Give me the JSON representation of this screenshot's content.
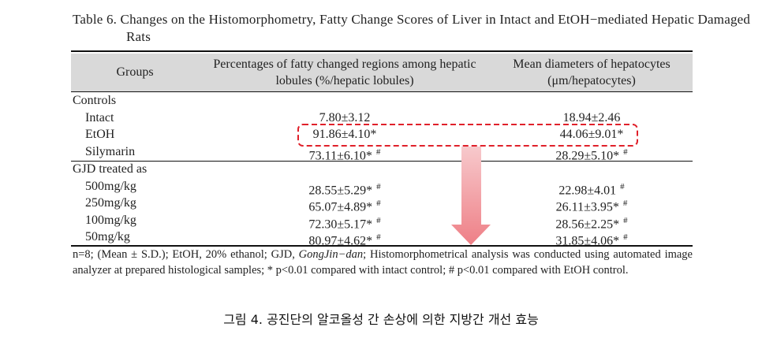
{
  "title": "Table 6. Changes on the Histomorphometry, Fatty Change Scores of Liver in Intact and EtOH−mediated Hepatic Damaged Rats",
  "table": {
    "header": {
      "group": "Groups",
      "fatty": [
        "Percentages of fatty changed regions among hepatic",
        "lobules (%/hepatic lobules)"
      ],
      "diameter": [
        "Mean diameters of hepatocytes",
        "(μm/hepatocytes)"
      ]
    },
    "sections": [
      {
        "label": "Controls",
        "rows": [
          {
            "group": "Intact",
            "fatty": {
              "text": "7.80±3.12"
            },
            "diameter": {
              "text": "18.94±2.46"
            }
          },
          {
            "group": "EtOH",
            "fatty": {
              "text": "91.86±4.10*"
            },
            "diameter": {
              "text": "44.06±9.01*"
            }
          },
          {
            "group": "Silymarin",
            "fatty": {
              "text": "73.11±6.10*",
              "mark": "#"
            },
            "diameter": {
              "text": "28.29±5.10*",
              "mark": "#"
            }
          }
        ]
      },
      {
        "label": "GJD treated as",
        "rows": [
          {
            "group": "500mg/kg",
            "fatty": {
              "text": "28.55±5.29*",
              "mark": "#"
            },
            "diameter": {
              "text": "22.98±4.01",
              "mark": "#"
            }
          },
          {
            "group": "250mg/kg",
            "fatty": {
              "text": "65.07±4.89*",
              "mark": "#"
            },
            "diameter": {
              "text": "26.11±3.95*",
              "mark": "#"
            }
          },
          {
            "group": "100mg/kg",
            "fatty": {
              "text": "72.30±5.17*",
              "mark": "#"
            },
            "diameter": {
              "text": "28.56±2.25*",
              "mark": "#"
            }
          },
          {
            "group": "50mg/kg",
            "fatty": {
              "text": "80.97±4.62*",
              "mark": "#"
            },
            "diameter": {
              "text": "31.85±4.06*",
              "mark": "#"
            }
          }
        ]
      }
    ]
  },
  "footnote": [
    "n=8; (Mean ± S.D.); EtOH, 20% ethanol; GJD, ",
    "GongJin−dan",
    "; Histomorphometrical analysis was conducted using automated image analyzer at prepared histological samples; * p<0.01 compared with intact control; # p<0.01 compared with EtOH control."
  ],
  "caption": "그림 4. 공진단의 알코올성 간 손상에 의한 지방간 개선 효능"
}
